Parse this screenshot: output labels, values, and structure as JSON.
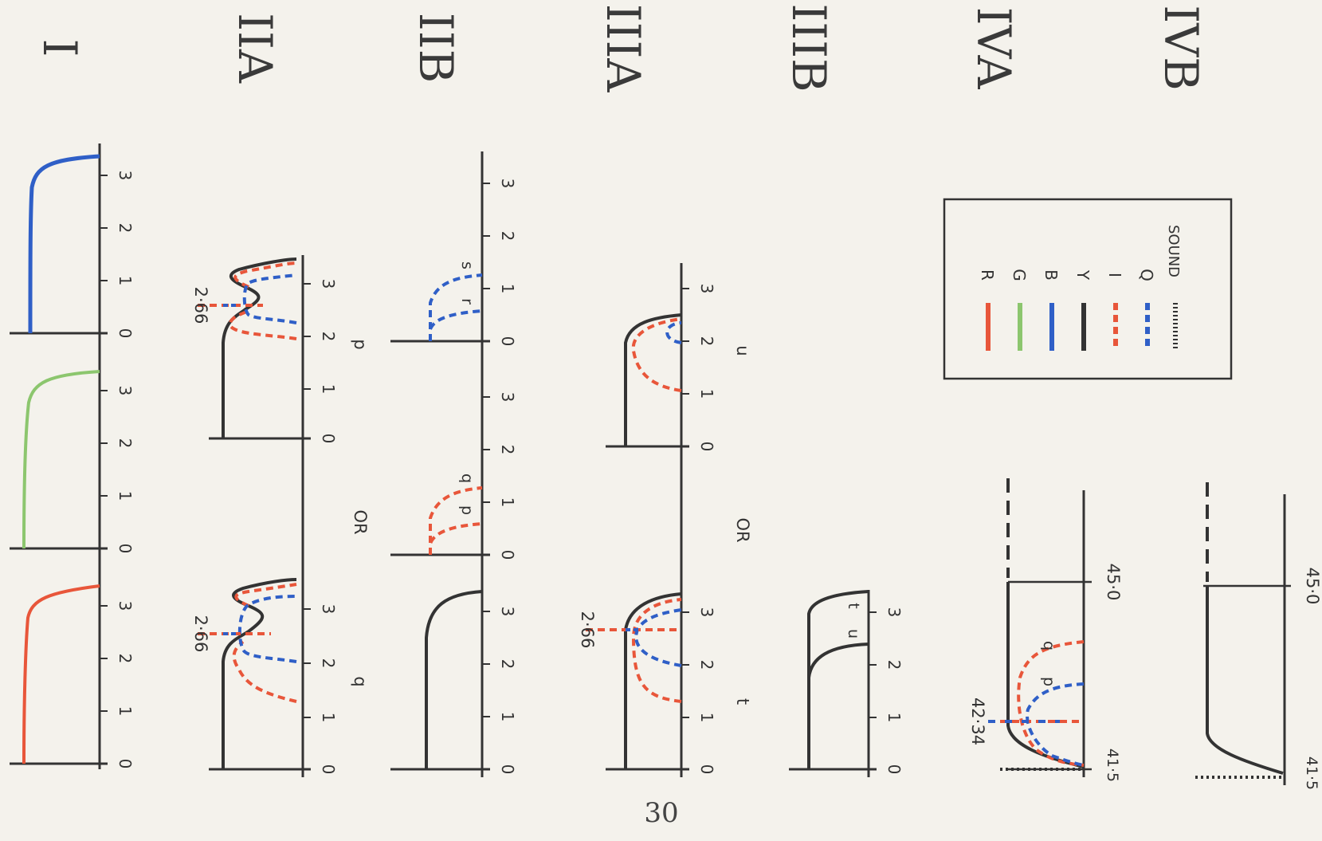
{
  "page_number": "30",
  "colors": {
    "R": "#e8563a",
    "G": "#8cc66e",
    "B": "#2f5fc7",
    "Y": "#333333",
    "I": "#e8563a",
    "Q": "#2f5fc7",
    "sound": "#333333"
  },
  "sections": {
    "I": "I",
    "IIA": "IIA",
    "IIB": "IIB",
    "IIIA": "IIIA",
    "IIIB": "IIIB",
    "IVA": "IVA",
    "IVB": "IVB"
  },
  "axis_ticks": [
    "0",
    "1",
    "2",
    "3"
  ],
  "annotations": {
    "v266": "2·66",
    "v4234": "42·34",
    "v415": "41·5",
    "v450": "45·0",
    "or": "OR",
    "p": "p",
    "q": "q",
    "r": "r",
    "s": "s",
    "t": "t",
    "u": "u"
  },
  "legend": [
    {
      "key": "R",
      "label": "R",
      "color": "#e8563a",
      "style": "solid"
    },
    {
      "key": "G",
      "label": "G",
      "color": "#8cc66e",
      "style": "solid"
    },
    {
      "key": "B",
      "label": "B",
      "color": "#2f5fc7",
      "style": "solid"
    },
    {
      "key": "Y",
      "label": "Y",
      "color": "#333333",
      "style": "solid"
    },
    {
      "key": "I",
      "label": "I",
      "color": "#e8563a",
      "style": "dashed"
    },
    {
      "key": "Q",
      "label": "Q",
      "color": "#2f5fc7",
      "style": "dashed"
    },
    {
      "key": "SOUND",
      "label": "SOUND",
      "color": "#333333",
      "style": "dotted"
    }
  ]
}
